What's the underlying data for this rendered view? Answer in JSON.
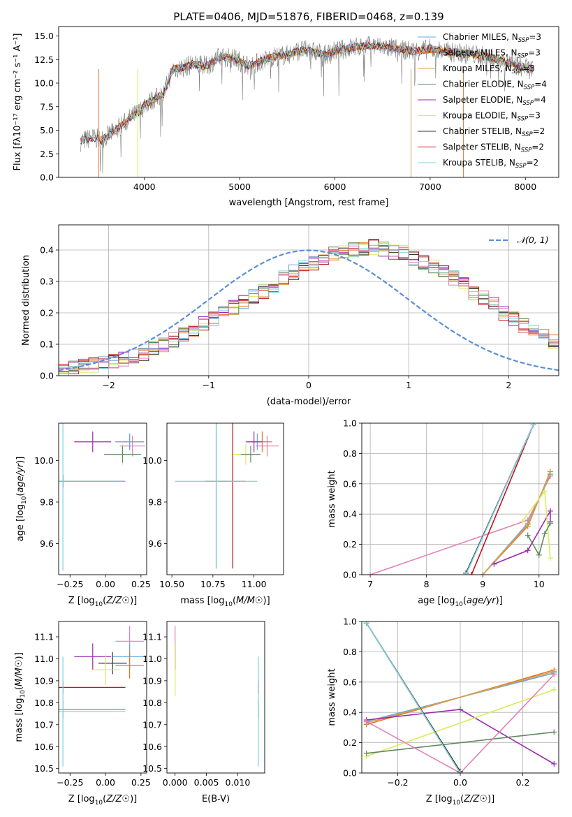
{
  "colors": {
    "chabrier_miles": "#6aa7d8",
    "salpeter_miles": "#e8742d",
    "kroupa_miles": "#d3a24a",
    "chabrier_elodie": "#5f8a5f",
    "salpeter_elodie": "#9a2ab0",
    "kroupa_elodie": "#d8ec5a",
    "chabrier_stelib": "#333333",
    "salpeter_stelib": "#c0141c",
    "kroupa_stelib": "#7fd3e0",
    "pink": "#e57fb4",
    "data_spectrum": "#808080",
    "gaussian": "#5b8ed6",
    "grid": "#b0b0b0"
  },
  "chart_data": [
    {
      "id": "spectrum",
      "type": "line",
      "title": "PLATE=0406, MJD=51876, FIBERID=0468, z=0.139",
      "xlabel": "wavelength [Angstrom, rest frame]",
      "ylabel": "Flux [fλ10⁻¹⁷ erg cm⁻² s⁻¹ A⁻¹]",
      "xlim": [
        3100,
        8350
      ],
      "ylim": [
        0,
        16
      ],
      "xticks": [
        4000,
        5000,
        6000,
        7000,
        8000
      ],
      "yticks": [
        0.0,
        2.5,
        5.0,
        7.5,
        10.0,
        12.5,
        15.0
      ],
      "grid": false,
      "legend_position": "right",
      "spectrum_x": [
        3330,
        3450,
        3550,
        3700,
        3850,
        3950,
        4000,
        4100,
        4200,
        4300,
        4400,
        4500,
        4650,
        4800,
        4950,
        5100,
        5200,
        5350,
        5500,
        5650,
        5800,
        5900,
        6000,
        6200,
        6400,
        6600,
        6800,
        7000,
        7200,
        7400,
        7600,
        7800,
        8000,
        8080
      ],
      "spectrum_y": [
        3.8,
        4.2,
        4.0,
        5.0,
        6.3,
        7.0,
        7.7,
        8.3,
        8.8,
        11.5,
        11.6,
        12.0,
        11.8,
        12.8,
        12.6,
        11.8,
        12.2,
        12.8,
        13.0,
        13.5,
        13.3,
        13.0,
        13.4,
        13.8,
        14.0,
        13.7,
        13.4,
        13.6,
        13.3,
        13.1,
        12.8,
        12.2,
        11.6,
        11.4
      ],
      "legend": [
        {
          "label": "Chabrier MILES, N",
          "sub": "SSP",
          "tail": "=3",
          "color_key": "chabrier_miles"
        },
        {
          "label": "Salpeter MILES, N",
          "sub": "SSP",
          "tail": "=3",
          "color_key": "salpeter_miles"
        },
        {
          "label": "Kroupa MILES, N",
          "sub": "SSP",
          "tail": "=3",
          "color_key": "kroupa_miles"
        },
        {
          "label": "Chabrier ELODIE, N",
          "sub": "SSP",
          "tail": "=4",
          "color_key": "chabrier_elodie"
        },
        {
          "label": "Salpeter ELODIE, N",
          "sub": "SSP",
          "tail": "=4",
          "color_key": "salpeter_elodie"
        },
        {
          "label": "Kroupa ELODIE, N",
          "sub": "SSP",
          "tail": "=3",
          "color_key": "kroupa_elodie"
        },
        {
          "label": "Chabrier STELIB, N",
          "sub": "SSP",
          "tail": "=2",
          "color_key": "chabrier_stelib"
        },
        {
          "label": "Salpeter STELIB, N",
          "sub": "SSP",
          "tail": "=2",
          "color_key": "salpeter_stelib"
        },
        {
          "label": "Kroupa STELIB, N",
          "sub": "SSP",
          "tail": "=2",
          "color_key": "kroupa_stelib"
        }
      ]
    },
    {
      "id": "residuals",
      "type": "line",
      "xlabel": "(data-model)/error",
      "ylabel": "Normed distribution",
      "xlim": [
        -2.5,
        2.5
      ],
      "ylim": [
        0,
        0.48
      ],
      "xticks": [
        -2,
        -1,
        0,
        1,
        2
      ],
      "yticks": [
        0.0,
        0.1,
        0.2,
        0.3,
        0.4
      ],
      "grid": true,
      "legend_position": "top-right",
      "legend_label": "𝒩(0, 1)",
      "bin_width": 0.1,
      "bin_start": -2.5,
      "histogram_values": [
        0.02,
        0.025,
        0.03,
        0.035,
        0.04,
        0.045,
        0.05,
        0.06,
        0.07,
        0.085,
        0.1,
        0.115,
        0.13,
        0.15,
        0.165,
        0.18,
        0.2,
        0.215,
        0.23,
        0.25,
        0.27,
        0.29,
        0.31,
        0.33,
        0.35,
        0.36,
        0.375,
        0.385,
        0.395,
        0.4,
        0.405,
        0.41,
        0.405,
        0.395,
        0.39,
        0.375,
        0.36,
        0.345,
        0.33,
        0.31,
        0.29,
        0.265,
        0.245,
        0.225,
        0.2,
        0.18,
        0.16,
        0.14,
        0.125,
        0.11
      ],
      "jitter_scale": 0.025
    },
    {
      "id": "age_vs_Z",
      "type": "scatter",
      "xlabel": "Z [log10(Z/Z☉)]",
      "ylabel": "age  [log10(age/yr)]",
      "xlim": [
        -0.33,
        0.29
      ],
      "ylim": [
        9.45,
        10.18
      ],
      "xticks": [
        -0.25,
        0.0,
        0.25
      ],
      "yticks": [
        9.6,
        9.8,
        10.0
      ],
      "grid": false,
      "points": [
        {
          "color_key": "pink",
          "x": 0.19,
          "y": 10.07,
          "xerr": 0.09,
          "yerr": 0.05
        },
        {
          "color_key": "salpeter_miles",
          "x": 0.17,
          "y": 10.09,
          "xerr": 0.1,
          "yerr": 0.04
        },
        {
          "color_key": "chabrier_miles",
          "x": 0.17,
          "y": 10.09,
          "xerr": 0.1,
          "yerr": 0.04
        },
        {
          "color_key": "salpeter_elodie",
          "x": -0.09,
          "y": 10.09,
          "xerr": 0.13,
          "yerr": 0.05
        },
        {
          "color_key": "kroupa_elodie",
          "x": 0.12,
          "y": 10.03,
          "xerr": 0.1,
          "yerr": 0.05
        },
        {
          "color_key": "chabrier_elodie",
          "x": 0.12,
          "y": 10.03,
          "xerr": 0.13,
          "yerr": 0.04
        },
        {
          "color_key": "salpeter_stelib",
          "x": -0.3,
          "y": 9.9,
          "xerr": 0.44,
          "yerr": 0.03
        },
        {
          "color_key": "chabrier_stelib",
          "x": -0.3,
          "y": 9.9,
          "xerr": 0.44,
          "yerr": 0.03
        },
        {
          "color_key": "kroupa_stelib",
          "x": -0.3,
          "y": 9.9,
          "xerr": 0.44,
          "yerr": 0.43
        }
      ]
    },
    {
      "id": "age_vs_mass",
      "type": "scatter",
      "xlabel": "mass [log10(M/M☉)]",
      "ylabel": "",
      "xlim": [
        10.47,
        11.18
      ],
      "ylim": [
        9.45,
        10.18
      ],
      "xticks": [
        10.5,
        10.75,
        11.0
      ],
      "yticks": [
        9.6,
        9.8,
        10.0
      ],
      "grid": false,
      "points": [
        {
          "color_key": "pink",
          "x": 11.08,
          "y": 10.07,
          "xerr": 0.07,
          "yerr": 0.05
        },
        {
          "color_key": "salpeter_miles",
          "x": 11.05,
          "y": 10.09,
          "xerr": 0.06,
          "yerr": 0.05
        },
        {
          "color_key": "chabrier_miles",
          "x": 11.02,
          "y": 10.09,
          "xerr": 0.06,
          "yerr": 0.04
        },
        {
          "color_key": "salpeter_elodie",
          "x": 11.0,
          "y": 10.09,
          "xerr": 0.05,
          "yerr": 0.05
        },
        {
          "color_key": "kroupa_elodie",
          "x": 10.95,
          "y": 10.03,
          "xerr": 0.08,
          "yerr": 0.05
        },
        {
          "color_key": "chabrier_elodie",
          "x": 10.98,
          "y": 10.03,
          "xerr": 0.06,
          "yerr": 0.04
        },
        {
          "color_key": "salpeter_stelib",
          "x": 10.87,
          "y": 9.9,
          "xerr": 0.08,
          "yerr": 0.42
        },
        {
          "color_key": "chabrier_stelib",
          "x": 10.77,
          "y": 9.9,
          "xerr": 0.07,
          "yerr": 0.42
        },
        {
          "color_key": "kroupa_stelib",
          "x": 10.77,
          "y": 9.9,
          "xerr": 0.25,
          "yerr": 0.42
        }
      ]
    },
    {
      "id": "massweight_vs_age",
      "type": "line",
      "xlabel": "age  [log10(age/yr)]",
      "ylabel": "mass weight",
      "xlim": [
        6.85,
        10.35
      ],
      "ylim": [
        0,
        1.0
      ],
      "xticks": [
        7,
        8,
        9,
        10
      ],
      "yticks": [
        0.0,
        0.2,
        0.4,
        0.6,
        0.8,
        1.0
      ],
      "grid": true,
      "series": [
        {
          "color_key": "pink",
          "x": [
            7.0,
            9.8,
            10.2
          ],
          "y": [
            0.0,
            0.36,
            0.65
          ]
        },
        {
          "color_key": "salpeter_miles",
          "x": [
            9.0,
            9.8,
            10.2
          ],
          "y": [
            0.0,
            0.32,
            0.68
          ]
        },
        {
          "color_key": "chabrier_miles",
          "x": [
            9.0,
            9.8,
            10.2
          ],
          "y": [
            0.0,
            0.34,
            0.66
          ]
        },
        {
          "color_key": "kroupa_miles",
          "x": [
            9.0,
            9.8,
            10.2
          ],
          "y": [
            0.0,
            0.33,
            0.67
          ]
        },
        {
          "color_key": "salpeter_elodie",
          "x": [
            9.2,
            9.8,
            10.2,
            10.2
          ],
          "y": [
            0.07,
            0.16,
            0.42,
            0.35
          ]
        },
        {
          "color_key": "kroupa_elodie",
          "x": [
            9.7,
            10.1,
            10.2
          ],
          "y": [
            0.35,
            0.55,
            0.11
          ]
        },
        {
          "color_key": "chabrier_elodie",
          "x": [
            9.8,
            10.0,
            10.1,
            10.2
          ],
          "y": [
            0.26,
            0.13,
            0.27,
            0.34
          ]
        },
        {
          "color_key": "salpeter_stelib",
          "x": [
            8.8,
            9.9
          ],
          "y": [
            0.0,
            0.99
          ]
        },
        {
          "color_key": "chabrier_stelib",
          "x": [
            8.7,
            9.9
          ],
          "y": [
            0.01,
            0.99
          ]
        },
        {
          "color_key": "kroupa_stelib",
          "x": [
            8.7,
            9.9
          ],
          "y": [
            0.0,
            0.99
          ]
        }
      ]
    },
    {
      "id": "mass_vs_Z",
      "type": "scatter",
      "xlabel": "Z [log10(Z/Z☉)]",
      "ylabel": "mass [log10(M/M☉)]",
      "xlim": [
        -0.33,
        0.29
      ],
      "ylim": [
        10.48,
        11.17
      ],
      "xticks": [
        -0.25,
        0.0,
        0.25
      ],
      "yticks": [
        10.5,
        10.6,
        10.7,
        10.8,
        10.9,
        11.0,
        11.1
      ],
      "grid": false,
      "points": [
        {
          "color_key": "pink",
          "x": 0.17,
          "y": 11.08,
          "xerr": 0.1,
          "yerr": 0.07
        },
        {
          "color_key": "chabrier_miles",
          "x": 0.17,
          "y": 11.01,
          "xerr": 0.12,
          "yerr": 0.06
        },
        {
          "color_key": "salpeter_miles",
          "x": 0.17,
          "y": 10.97,
          "xerr": 0.1,
          "yerr": 0.06
        },
        {
          "color_key": "salpeter_elodie",
          "x": -0.09,
          "y": 11.01,
          "xerr": 0.13,
          "yerr": 0.06
        },
        {
          "color_key": "chabrier_stelib",
          "x": 0.05,
          "y": 10.98,
          "xerr": 0.1,
          "yerr": 0.05
        },
        {
          "color_key": "kroupa_elodie",
          "x": 0.0,
          "y": 10.95,
          "xerr": 0.1,
          "yerr": 0.07
        },
        {
          "color_key": "salpeter_stelib",
          "x": -0.3,
          "y": 10.87,
          "xerr": 0.44,
          "yerr": 0.03
        },
        {
          "color_key": "chabrier_elodie",
          "x": -0.3,
          "y": 10.77,
          "xerr": 0.44,
          "yerr": 0.04
        },
        {
          "color_key": "kroupa_stelib",
          "x": -0.3,
          "y": 10.76,
          "xerr": 0.44,
          "yerr": 0.25
        }
      ]
    },
    {
      "id": "mass_vs_ebv",
      "type": "scatter",
      "xlabel": "E(B-V)",
      "ylabel": "",
      "xlim": [
        -0.0013,
        0.0143
      ],
      "ylim": [
        10.48,
        11.17
      ],
      "xticks": [
        0.0,
        0.005,
        0.01
      ],
      "xticklabels": [
        "0.000",
        "0.005",
        "0.010"
      ],
      "yticks": [
        10.5,
        10.6,
        10.7,
        10.8,
        10.9,
        11.0,
        11.1
      ],
      "grid": false,
      "points": [
        {
          "color_key": "pink",
          "x": 0.0,
          "y": 11.08,
          "xerr": 0.0,
          "yerr": 0.07
        },
        {
          "color_key": "salpeter_elodie",
          "x": 0.0,
          "y": 11.01,
          "xerr": 0.0,
          "yerr": 0.06
        },
        {
          "color_key": "kroupa_elodie",
          "x": 0.0,
          "y": 10.95,
          "xerr": 0.0,
          "yerr": 0.12
        },
        {
          "color_key": "salpeter_stelib",
          "x": 0.0133,
          "y": 10.87,
          "xerr": 0.0,
          "yerr": 0.03
        },
        {
          "color_key": "chabrier_elodie",
          "x": 0.0133,
          "y": 10.77,
          "xerr": 0.0,
          "yerr": 0.04
        },
        {
          "color_key": "kroupa_stelib",
          "x": 0.0133,
          "y": 10.76,
          "xerr": 0.0,
          "yerr": 0.25
        }
      ]
    },
    {
      "id": "massweight_vs_Z",
      "type": "line",
      "xlabel": "Z [log10(Z/Z☉)]",
      "ylabel": "mass weight",
      "xlim": [
        -0.315,
        0.315
      ],
      "ylim": [
        0,
        1.0
      ],
      "xticks": [
        -0.2,
        0.0,
        0.2
      ],
      "yticks": [
        0.0,
        0.2,
        0.4,
        0.6,
        0.8,
        1.0
      ],
      "grid": true,
      "series": [
        {
          "color_key": "chabrier_miles",
          "x": [
            -0.3,
            0.3
          ],
          "y": [
            0.34,
            0.66
          ]
        },
        {
          "color_key": "salpeter_miles",
          "x": [
            -0.3,
            0.3
          ],
          "y": [
            0.32,
            0.68
          ]
        },
        {
          "color_key": "kroupa_miles",
          "x": [
            -0.3,
            0.3
          ],
          "y": [
            0.33,
            0.67
          ]
        },
        {
          "color_key": "salpeter_elodie",
          "x": [
            -0.3,
            0.0,
            0.3
          ],
          "y": [
            0.35,
            0.42,
            0.06
          ]
        },
        {
          "color_key": "kroupa_elodie",
          "x": [
            -0.3,
            0.3
          ],
          "y": [
            0.11,
            0.55
          ]
        },
        {
          "color_key": "chabrier_elodie",
          "x": [
            -0.3,
            0.3
          ],
          "y": [
            0.13,
            0.27
          ]
        },
        {
          "color_key": "pink",
          "x": [
            -0.3,
            0.0,
            0.3
          ],
          "y": [
            0.34,
            0.0,
            0.65
          ]
        },
        {
          "color_key": "salpeter_stelib",
          "x": [
            -0.3,
            0.0
          ],
          "y": [
            0.99,
            0.0
          ]
        },
        {
          "color_key": "chabrier_stelib",
          "x": [
            -0.3,
            0.0
          ],
          "y": [
            0.99,
            0.01
          ]
        },
        {
          "color_key": "kroupa_stelib",
          "x": [
            -0.3,
            0.0
          ],
          "y": [
            0.99,
            0.0
          ]
        }
      ]
    }
  ]
}
